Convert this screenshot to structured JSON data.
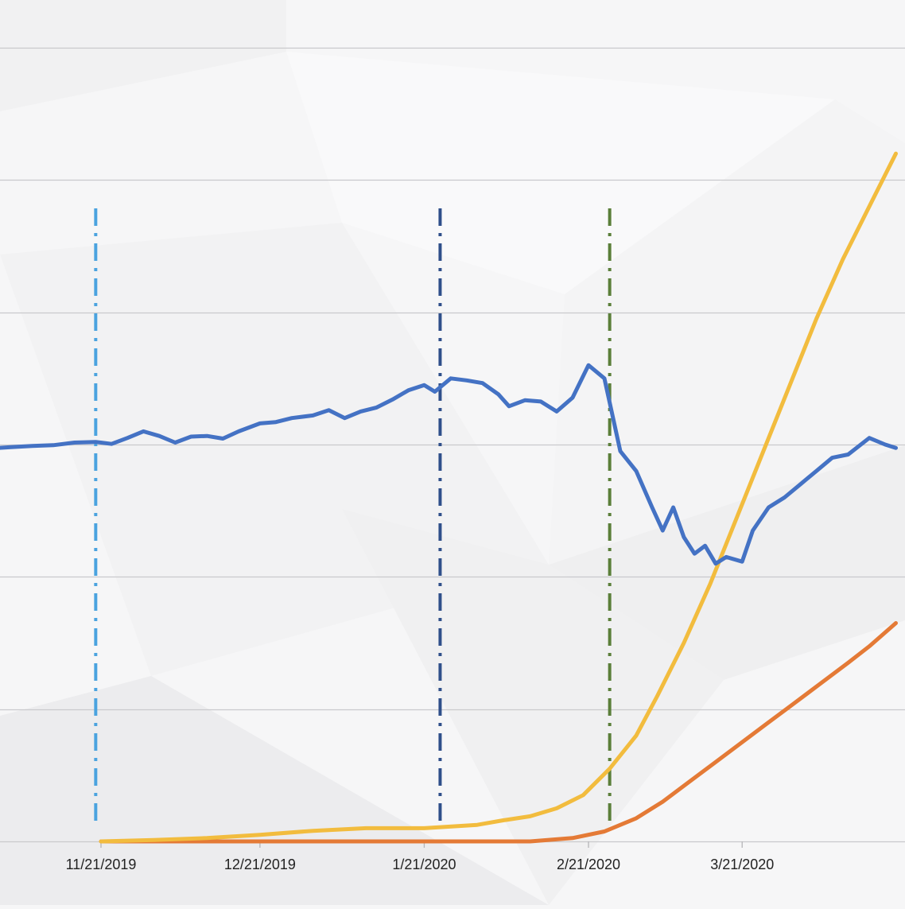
{
  "chart_data": {
    "type": "line",
    "x_axis": {
      "type": "date",
      "tick_labels": [
        "11/21/2019",
        "12/21/2019",
        "1/21/2020",
        "2/21/2020",
        "3/21/2020"
      ],
      "range": [
        "2019-10-27",
        "2020-04-19"
      ]
    },
    "grid": "horizontal",
    "legend": "none",
    "series": [
      {
        "color": "#4472c4",
        "points": [
          [
            "2019-10-27",
            0.59
          ],
          [
            "2019-10-31",
            0.594
          ],
          [
            "2019-11-04",
            0.596
          ],
          [
            "2019-11-08",
            0.598
          ],
          [
            "2019-11-12",
            0.599
          ],
          [
            "2019-11-16",
            0.603
          ],
          [
            "2019-11-20",
            0.604
          ],
          [
            "2019-11-23",
            0.601
          ],
          [
            "2019-11-26",
            0.61
          ],
          [
            "2019-11-29",
            0.62
          ],
          [
            "2019-12-02",
            0.613
          ],
          [
            "2019-12-05",
            0.603
          ],
          [
            "2019-12-08",
            0.612
          ],
          [
            "2019-12-11",
            0.613
          ],
          [
            "2019-12-14",
            0.609
          ],
          [
            "2019-12-17",
            0.62
          ],
          [
            "2019-12-21",
            0.632
          ],
          [
            "2019-12-24",
            0.634
          ],
          [
            "2019-12-27",
            0.64
          ],
          [
            "2019-12-31",
            0.644
          ],
          [
            "2020-01-03",
            0.652
          ],
          [
            "2020-01-06",
            0.64
          ],
          [
            "2020-01-09",
            0.65
          ],
          [
            "2020-01-12",
            0.656
          ],
          [
            "2020-01-15",
            0.668
          ],
          [
            "2020-01-18",
            0.682
          ],
          [
            "2020-01-21",
            0.69
          ],
          [
            "2020-01-23",
            0.68
          ],
          [
            "2020-01-26",
            0.7
          ],
          [
            "2020-01-29",
            0.697
          ],
          [
            "2020-02-01",
            0.693
          ],
          [
            "2020-02-04",
            0.676
          ],
          [
            "2020-02-06",
            0.658
          ],
          [
            "2020-02-09",
            0.667
          ],
          [
            "2020-02-12",
            0.665
          ],
          [
            "2020-02-15",
            0.65
          ],
          [
            "2020-02-18",
            0.671
          ],
          [
            "2020-02-21",
            0.72
          ],
          [
            "2020-02-24",
            0.7
          ],
          [
            "2020-02-27",
            0.59
          ],
          [
            "2020-03-01",
            0.56
          ],
          [
            "2020-03-04",
            0.505
          ],
          [
            "2020-03-06",
            0.47
          ],
          [
            "2020-03-08",
            0.505
          ],
          [
            "2020-03-10",
            0.46
          ],
          [
            "2020-03-12",
            0.435
          ],
          [
            "2020-03-14",
            0.447
          ],
          [
            "2020-03-16",
            0.42
          ],
          [
            "2020-03-18",
            0.43
          ],
          [
            "2020-03-21",
            0.423
          ],
          [
            "2020-03-23",
            0.47
          ],
          [
            "2020-03-26",
            0.505
          ],
          [
            "2020-03-29",
            0.52
          ],
          [
            "2020-04-01",
            0.54
          ],
          [
            "2020-04-04",
            0.56
          ],
          [
            "2020-04-07",
            0.58
          ],
          [
            "2020-04-10",
            0.585
          ],
          [
            "2020-04-14",
            0.61
          ],
          [
            "2020-04-17",
            0.6
          ],
          [
            "2020-04-19",
            0.595
          ]
        ]
      },
      {
        "color": "#f2bc3e",
        "points": [
          [
            "2019-11-21",
            0.0
          ],
          [
            "2019-12-01",
            0.002
          ],
          [
            "2019-12-11",
            0.005
          ],
          [
            "2019-12-21",
            0.01
          ],
          [
            "2019-12-31",
            0.016
          ],
          [
            "2020-01-10",
            0.02
          ],
          [
            "2020-01-21",
            0.02
          ],
          [
            "2020-01-31",
            0.025
          ],
          [
            "2020-02-05",
            0.032
          ],
          [
            "2020-02-10",
            0.038
          ],
          [
            "2020-02-15",
            0.05
          ],
          [
            "2020-02-20",
            0.07
          ],
          [
            "2020-02-25",
            0.11
          ],
          [
            "2020-03-01",
            0.16
          ],
          [
            "2020-03-05",
            0.22
          ],
          [
            "2020-03-10",
            0.3
          ],
          [
            "2020-03-15",
            0.39
          ],
          [
            "2020-03-20",
            0.49
          ],
          [
            "2020-03-25",
            0.59
          ],
          [
            "2020-03-30",
            0.69
          ],
          [
            "2020-04-04",
            0.79
          ],
          [
            "2020-04-09",
            0.88
          ],
          [
            "2020-04-14",
            0.96
          ],
          [
            "2020-04-19",
            1.04
          ]
        ]
      },
      {
        "color": "#e47a36",
        "points": [
          [
            "2019-11-21",
            0.0
          ],
          [
            "2019-12-21",
            0.0
          ],
          [
            "2020-01-21",
            0.0
          ],
          [
            "2020-02-10",
            0.0
          ],
          [
            "2020-02-18",
            0.005
          ],
          [
            "2020-02-24",
            0.015
          ],
          [
            "2020-03-01",
            0.035
          ],
          [
            "2020-03-06",
            0.06
          ],
          [
            "2020-03-11",
            0.09
          ],
          [
            "2020-03-16",
            0.12
          ],
          [
            "2020-03-21",
            0.15
          ],
          [
            "2020-03-26",
            0.18
          ],
          [
            "2020-03-31",
            0.21
          ],
          [
            "2020-04-05",
            0.24
          ],
          [
            "2020-04-10",
            0.27
          ],
          [
            "2020-04-14",
            0.295
          ],
          [
            "2020-04-19",
            0.33
          ]
        ]
      }
    ],
    "event_lines": [
      {
        "date": "2019-11-20",
        "color": "#4aa3df"
      },
      {
        "date": "2020-01-24",
        "color": "#2f4f8a"
      },
      {
        "date": "2020-02-25",
        "color": "#5b7f3a"
      }
    ]
  }
}
